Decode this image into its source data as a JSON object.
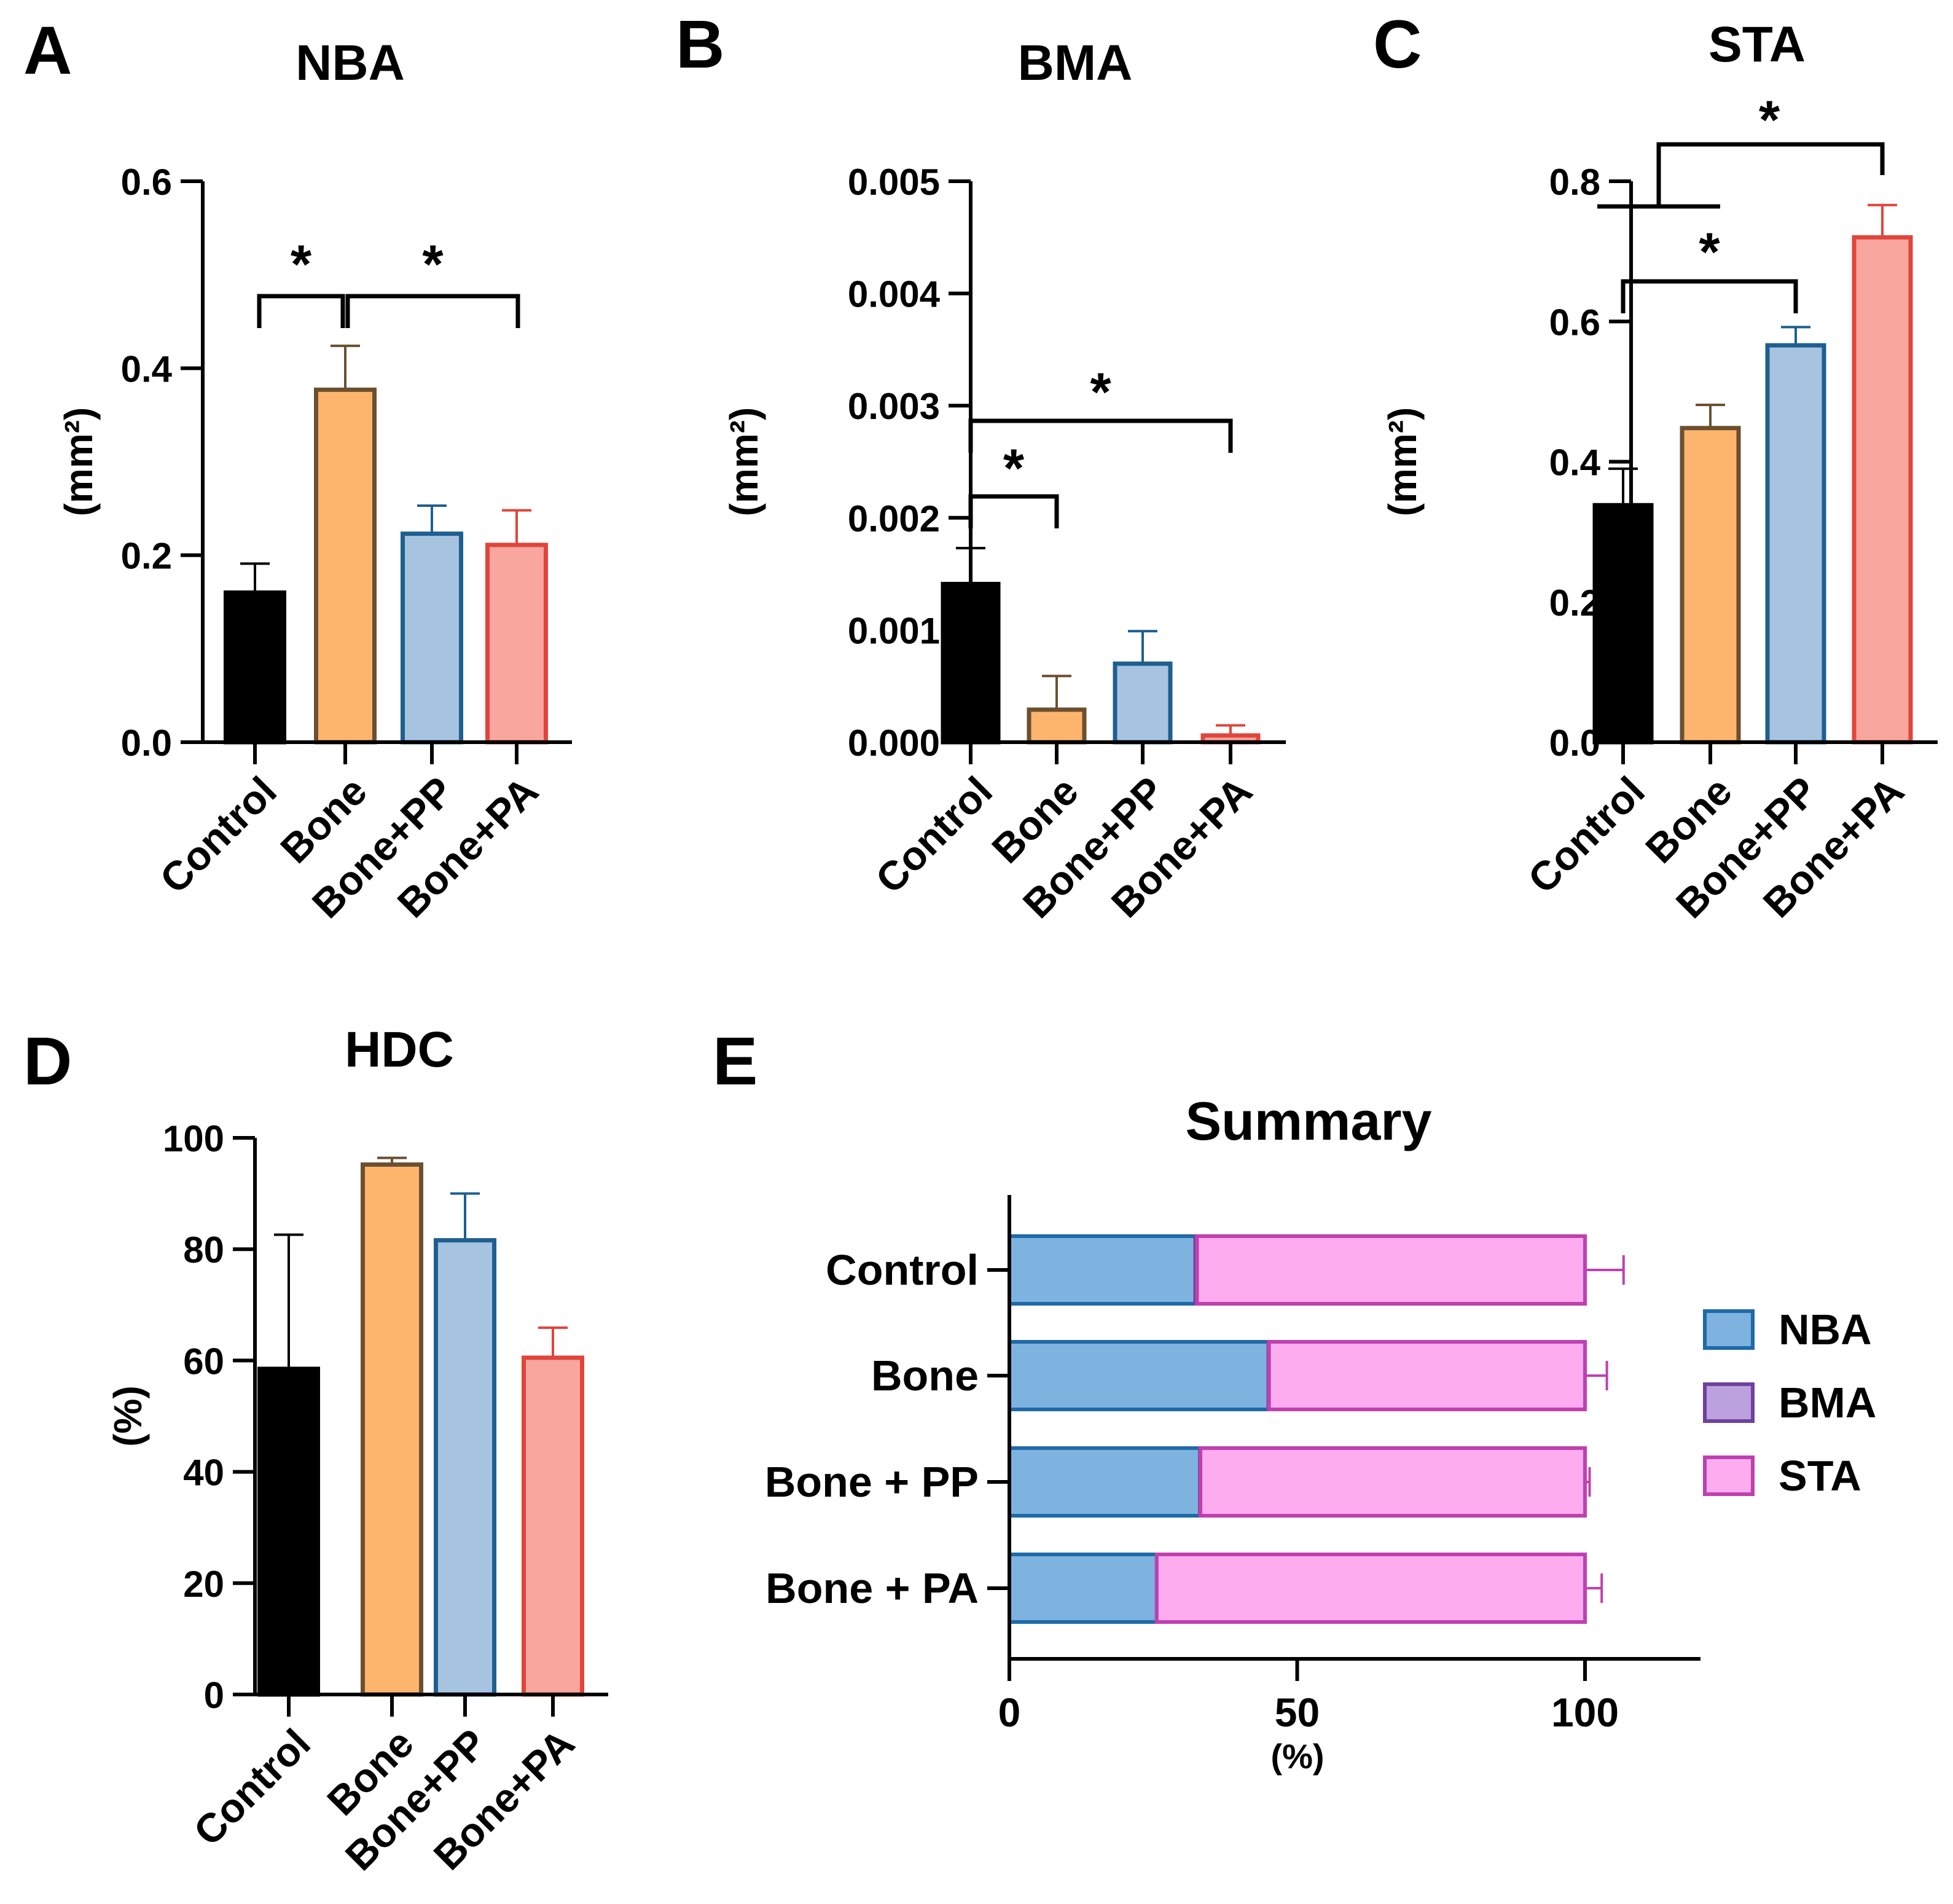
{
  "chart_data": [
    {
      "panel": "A",
      "type": "bar",
      "title": "NBA",
      "ylabel": "(mm²)",
      "ylim": [
        0,
        0.6
      ],
      "yticks": [
        "0.0",
        "0.2",
        "0.4",
        "0.6"
      ],
      "categories": [
        "Control",
        "Bone",
        "Bone+PP",
        "Bone+PA"
      ],
      "values": [
        0.16,
        0.377,
        0.223,
        0.211
      ],
      "errors": [
        0.031,
        0.047,
        0.03,
        0.037
      ],
      "significance": [
        {
          "from": 0,
          "to": 1,
          "label": "*"
        },
        {
          "from": 1,
          "to": 3,
          "label": "*"
        }
      ]
    },
    {
      "panel": "B",
      "type": "bar",
      "title": "BMA",
      "ylabel": "(mm²)",
      "ylim": [
        0,
        0.005
      ],
      "yticks": [
        "0.000",
        "0.001",
        "0.002",
        "0.003",
        "0.004",
        "0.005"
      ],
      "categories": [
        "Control",
        "Bone",
        "Bone+PP",
        "Bone+PA"
      ],
      "values": [
        0.00141,
        0.00029,
        0.0007,
        6e-05
      ],
      "errors": [
        0.00032,
        0.0003,
        0.00029,
        9e-05
      ],
      "significance": [
        {
          "from": 0,
          "to": 1,
          "label": "*"
        },
        {
          "from": 0,
          "to": 3,
          "label": "*"
        }
      ]
    },
    {
      "panel": "C",
      "type": "bar",
      "title": "STA",
      "ylabel": "(mm²)",
      "ylim": [
        0,
        0.8
      ],
      "yticks": [
        "0.0",
        "0.2",
        "0.4",
        "0.6",
        "0.8"
      ],
      "categories": [
        "Control",
        "Bone",
        "Bone+PP",
        "Bone+PA"
      ],
      "values": [
        0.338,
        0.448,
        0.566,
        0.72
      ],
      "errors": [
        0.052,
        0.033,
        0.026,
        0.046
      ],
      "significance": [
        {
          "from": 0,
          "to": 2,
          "label": "*"
        },
        {
          "group": [
            0,
            1
          ],
          "to": 3,
          "label": "*"
        }
      ]
    },
    {
      "panel": "D",
      "type": "bar",
      "title": "HDC",
      "ylabel": "(%)",
      "ylim": [
        0,
        100
      ],
      "yticks": [
        "0",
        "20",
        "40",
        "60",
        "80",
        "100"
      ],
      "categories": [
        "Control",
        "Bone",
        "Bone+PP",
        "Bone+PA"
      ],
      "values": [
        58.5,
        95.2,
        81.6,
        60.5
      ],
      "errors": [
        24.1,
        1.2,
        8.4,
        5.4
      ],
      "significance": []
    },
    {
      "panel": "E",
      "type": "bar",
      "orientation": "horizontal",
      "stacked": true,
      "title": "Summary",
      "xlabel": "(%)",
      "xlim": [
        0,
        120
      ],
      "xticks": [
        "0",
        "50",
        "100"
      ],
      "categories": [
        "Control",
        "Bone ",
        "Bone + PP",
        "Bone + PA"
      ],
      "series": [
        {
          "name": "NBA",
          "values": [
            32.3,
            45.0,
            33.1,
            25.6
          ],
          "errors": [
            6.5,
            3.5,
            0.8,
            2.7
          ]
        },
        {
          "name": "BMA",
          "values": [
            0.3,
            0.1,
            0.1,
            0.0
          ],
          "errors": [
            0,
            0,
            0,
            0
          ]
        },
        {
          "name": "STA",
          "values": [
            67.4,
            54.9,
            66.8,
            74.4
          ],
          "errors": [
            6.7,
            3.8,
            0.8,
            2.9
          ]
        }
      ],
      "legend": "right"
    }
  ],
  "colors": {
    "Control": {
      "fill": "#000000",
      "edge": "#000000"
    },
    "Bone": {
      "fill": "#fdb46d",
      "edge": "#6b5030"
    },
    "Bone+PP": {
      "fill": "#a6c4e0",
      "edge": "#1f5f90"
    },
    "Bone+PA": {
      "fill": "#f9a69e",
      "edge": "#e0453b"
    },
    "NBA": {
      "fill": "#7eb3e0",
      "edge": "#1f6aa8"
    },
    "BMA": {
      "fill": "#bba1dd",
      "edge": "#7040a0"
    },
    "STA": {
      "fill": "#fdadef",
      "edge": "#c040b0"
    }
  }
}
